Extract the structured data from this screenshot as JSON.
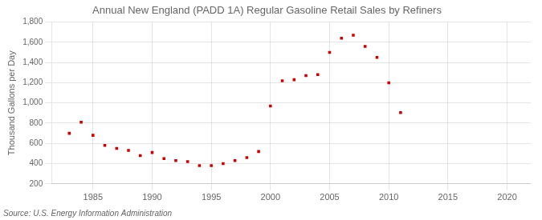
{
  "chart_data": {
    "type": "scatter",
    "title": "Annual New England (PADD 1A) Regular Gasoline Retail Sales by Refiners",
    "ylabel": "Thousand Gallons per Day",
    "source": "Source: U.S. Energy Information Administration",
    "x": [
      1983,
      1984,
      1985,
      1986,
      1987,
      1988,
      1989,
      1990,
      1991,
      1992,
      1993,
      1994,
      1995,
      1996,
      1997,
      1998,
      1999,
      2000,
      2001,
      2002,
      2003,
      2004,
      2005,
      2006,
      2007,
      2008,
      2009,
      2010,
      2011
    ],
    "values": [
      700,
      810,
      680,
      580,
      550,
      530,
      480,
      510,
      450,
      430,
      420,
      380,
      380,
      400,
      430,
      460,
      520,
      970,
      1220,
      1230,
      1270,
      1280,
      1500,
      1640,
      1670,
      1560,
      1450,
      1200,
      905
    ],
    "color": "#cc0000",
    "marker": "square",
    "xlim": [
      1981.5,
      2022
    ],
    "ylim": [
      200,
      1800
    ],
    "xticks": [
      1985,
      1990,
      1995,
      2000,
      2005,
      2010,
      2015,
      2020
    ],
    "yticks": [
      200,
      400,
      600,
      800,
      {
        "value": 1000,
        "label": "1,000"
      },
      {
        "value": 1200,
        "label": "1,200"
      },
      {
        "value": 1400,
        "label": "1,400"
      },
      {
        "value": 1600,
        "label": "1,600"
      },
      {
        "value": 1800,
        "label": "1,800"
      }
    ],
    "grid": true
  }
}
